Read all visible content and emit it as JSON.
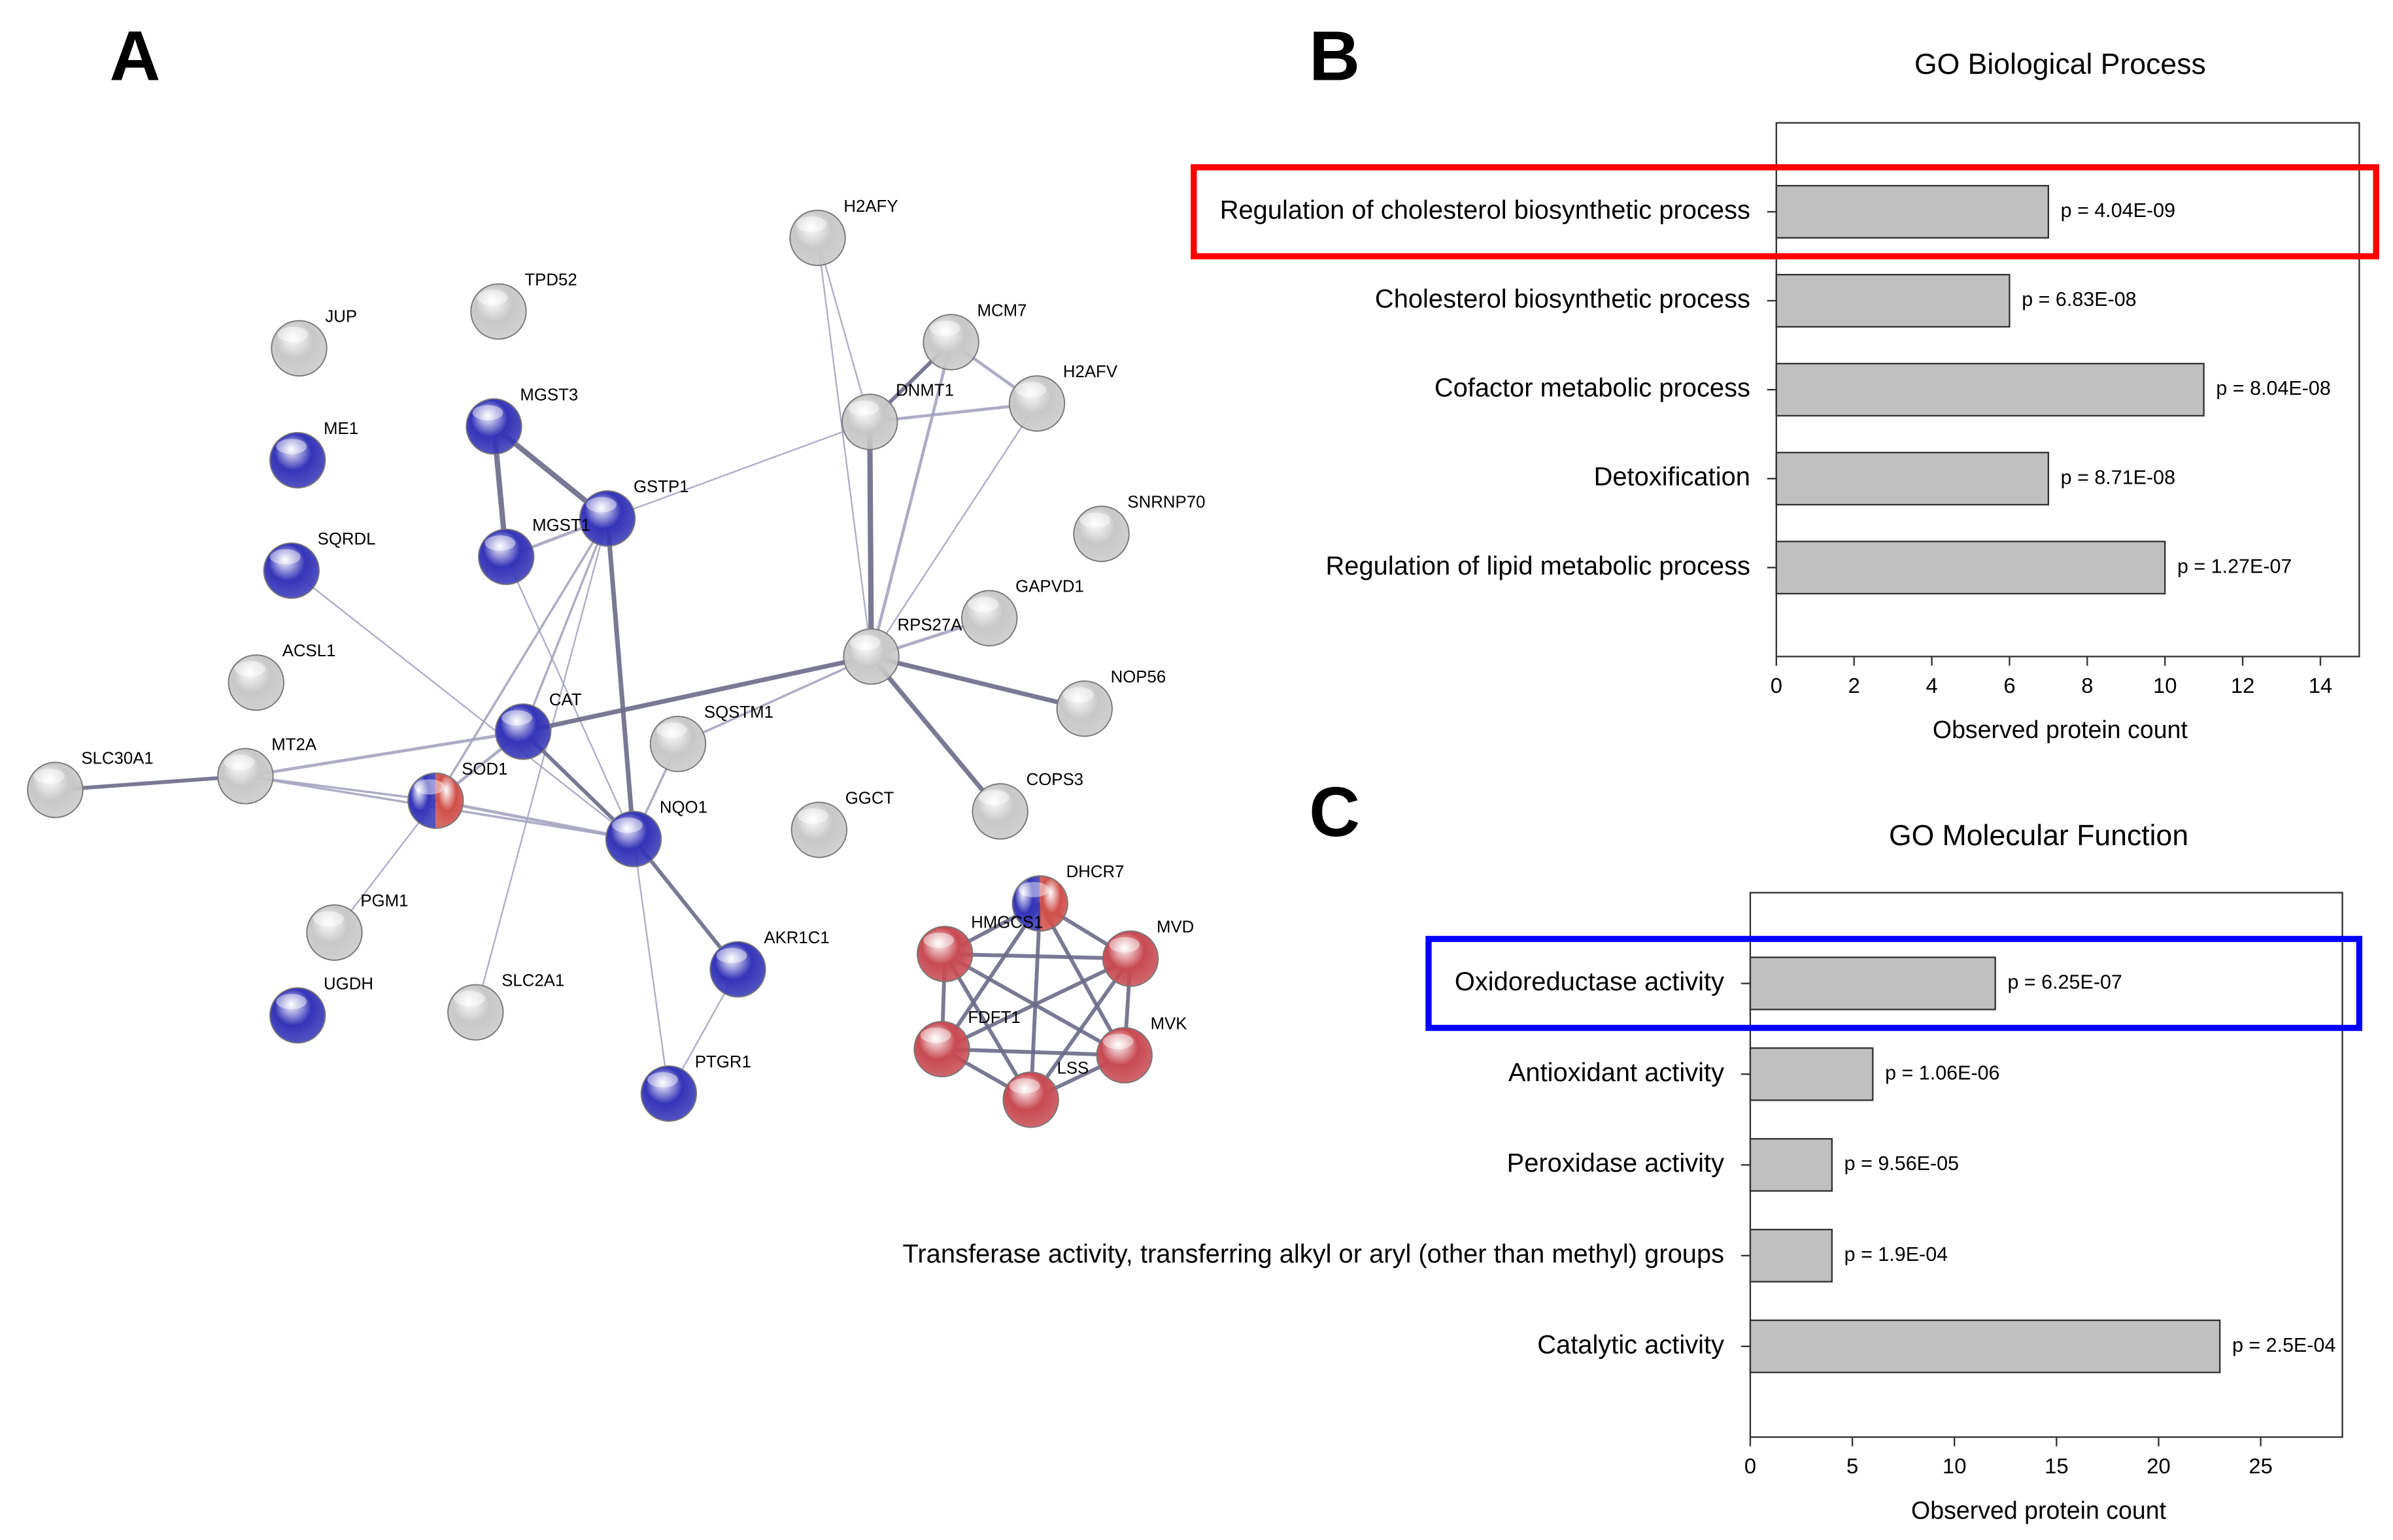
{
  "network": {
    "panel_label": "A",
    "nodes": [
      {
        "label": "H2AFY",
        "color": "#c8c8c8"
      },
      {
        "label": "TPD52",
        "color": "#c8c8c8"
      },
      {
        "label": "JUP",
        "color": "#c8c8c8"
      },
      {
        "label": "MCM7",
        "color": "#c8c8c8"
      },
      {
        "label": "H2AFV",
        "color": "#c8c8c8"
      },
      {
        "label": "DNMT1",
        "color": "#c8c8c8"
      },
      {
        "label": "MGST3",
        "color": "#3434b8"
      },
      {
        "label": "ME1",
        "color": "#3434b8"
      },
      {
        "label": "GSTP1",
        "color": "#3434b8"
      },
      {
        "label": "MGST1",
        "color": "#3434b8"
      },
      {
        "label": "SNRNP70",
        "color": "#c8c8c8"
      },
      {
        "label": "SQRDL",
        "color": "#3434b8"
      },
      {
        "label": "GAPVD1",
        "color": "#c8c8c8"
      },
      {
        "label": "RPS27A",
        "color": "#c8c8c8"
      },
      {
        "label": "ACSL1",
        "color": "#c8c8c8"
      },
      {
        "label": "NOP56",
        "color": "#c8c8c8"
      },
      {
        "label": "CAT",
        "color": "#3434b8"
      },
      {
        "label": "SQSTM1",
        "color": "#c8c8c8"
      },
      {
        "label": "MT2A",
        "color": "#c8c8c8"
      },
      {
        "label": "SLC30A1",
        "color": "#c8c8c8"
      },
      {
        "label": "SOD1",
        "color": [
          "#3434b8",
          "#d0504a"
        ]
      },
      {
        "label": "COPS3",
        "color": "#c8c8c8"
      },
      {
        "label": "GGCT",
        "color": "#c8c8c8"
      },
      {
        "label": "NQO1",
        "color": "#3434b8"
      },
      {
        "label": "DHCR7",
        "color": [
          "#3434b8",
          "#d0504a"
        ]
      },
      {
        "label": "HMGCS1",
        "color": "#c84a52"
      },
      {
        "label": "MVD",
        "color": "#c84a52"
      },
      {
        "label": "PGM1",
        "color": "#c8c8c8"
      },
      {
        "label": "AKR1C1",
        "color": "#3434b8"
      },
      {
        "label": "UGDH",
        "color": "#3434b8"
      },
      {
        "label": "SLC2A1",
        "color": "#c8c8c8"
      },
      {
        "label": "FDFT1",
        "color": "#c84a52"
      },
      {
        "label": "MVK",
        "color": "#c84a52"
      },
      {
        "label": "LSS",
        "color": "#c84a52"
      },
      {
        "label": "PTGR1",
        "color": "#3434b8"
      }
    ]
  },
  "chart_data": [
    {
      "type": "barh",
      "panel_label": "B",
      "title": "GO Biological Process",
      "x_label": "Observed protein count",
      "categories": [
        "Regulation of cholesterol biosynthetic process",
        "Cholesterol biosynthetic process",
        "Cofactor metabolic process",
        "Detoxification",
        "Regulation of lipid metabolic process"
      ],
      "values": [
        7,
        6,
        11,
        7,
        10
      ],
      "annotations": [
        "p = 4.04E-09",
        "p = 6.83E-08",
        "p = 8.04E-08",
        "p = 8.71E-08",
        "p = 1.27E-07"
      ],
      "color": "#c0c0c0",
      "xlim": [
        0,
        15
      ],
      "xticks": [
        0,
        2,
        4,
        6,
        8,
        10,
        12,
        14
      ],
      "highlight": {
        "index": 0,
        "color": "#ff0000"
      }
    },
    {
      "type": "barh",
      "panel_label": "C",
      "title": "GO Molecular Function",
      "x_label": "Observed protein count",
      "categories": [
        "Oxidoreductase activity",
        "Antioxidant activity",
        "Peroxidase activity",
        "Transferase activity, transferring alkyl or aryl (other than methyl) groups",
        "Catalytic activity"
      ],
      "values": [
        12,
        6,
        4,
        4,
        23
      ],
      "annotations": [
        "p = 6.25E-07",
        "p = 1.06E-06",
        "p = 9.56E-05",
        "p = 1.9E-04",
        "p = 2.5E-04"
      ],
      "color": "#c0c0c0",
      "xlim": [
        0,
        29
      ],
      "xticks": [
        0,
        5,
        10,
        15,
        20,
        25
      ],
      "highlight": {
        "index": 0,
        "color": "#0000ff"
      }
    }
  ]
}
